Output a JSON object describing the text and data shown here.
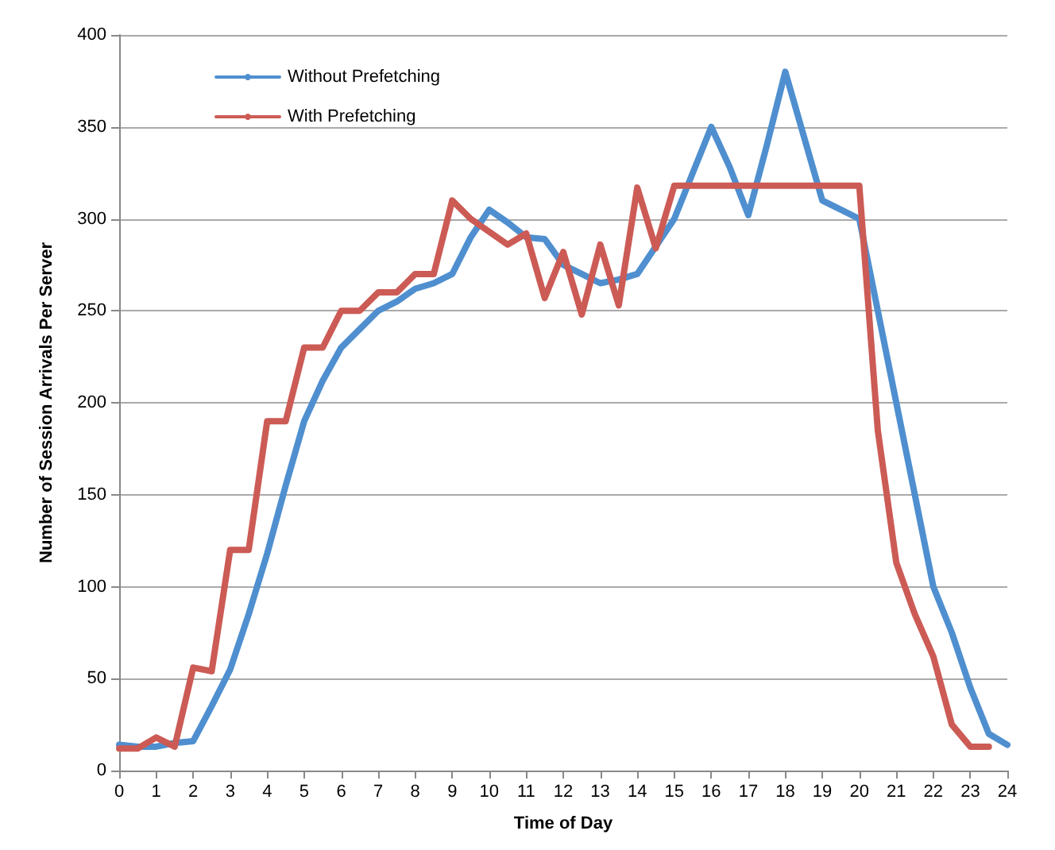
{
  "chart_data": {
    "type": "line",
    "xlabel": "Time of Day",
    "ylabel": "Number of Session Arrivals Per Server",
    "x": [
      0,
      0.5,
      1,
      1.5,
      2,
      2.5,
      3,
      3.5,
      4,
      4.5,
      5,
      5.5,
      6,
      6.5,
      7,
      7.5,
      8,
      8.5,
      9,
      9.5,
      10,
      10.5,
      11,
      11.5,
      12,
      12.5,
      13,
      13.5,
      14,
      14.5,
      15,
      15.5,
      16,
      16.5,
      17,
      17.5,
      18,
      18.5,
      19,
      19.5,
      20,
      20.5,
      21,
      21.5,
      22,
      22.5,
      23,
      23.5,
      24
    ],
    "series": [
      {
        "name": "Without Prefetching",
        "color": "#4f8fcf",
        "values": [
          14,
          13,
          13,
          15,
          16,
          35,
          55,
          85,
          118,
          155,
          190,
          212,
          230,
          240,
          250,
          255,
          262,
          265,
          270,
          290,
          305,
          298,
          290,
          289,
          275,
          270,
          265,
          267,
          270,
          285,
          300,
          325,
          350,
          328,
          302,
          340,
          380,
          345,
          310,
          305,
          300,
          250,
          200,
          150,
          100,
          75,
          45,
          20,
          14
        ]
      },
      {
        "name": "With Prefetching",
        "color": "#cc5b55",
        "values": [
          12,
          12,
          18,
          13,
          56,
          54,
          120,
          120,
          190,
          190,
          230,
          230,
          250,
          250,
          260,
          260,
          270,
          270,
          310,
          300,
          293,
          286,
          292,
          257,
          282,
          248,
          286,
          253,
          317,
          284,
          318,
          318,
          318,
          318,
          318,
          318,
          318,
          318,
          318,
          318,
          318,
          185,
          113,
          85,
          62,
          25,
          13,
          13,
          null
        ]
      }
    ],
    "xlim": [
      0,
      24
    ],
    "xticks": [
      0,
      1,
      2,
      3,
      4,
      5,
      6,
      7,
      8,
      9,
      10,
      11,
      12,
      13,
      14,
      15,
      16,
      17,
      18,
      19,
      20,
      21,
      22,
      23,
      24
    ],
    "ylim": [
      0,
      400
    ],
    "yticks": [
      0,
      50,
      100,
      150,
      200,
      250,
      300,
      350,
      400
    ],
    "grid": "y",
    "legend": "top left",
    "marker": "none",
    "line_style": "solid"
  }
}
